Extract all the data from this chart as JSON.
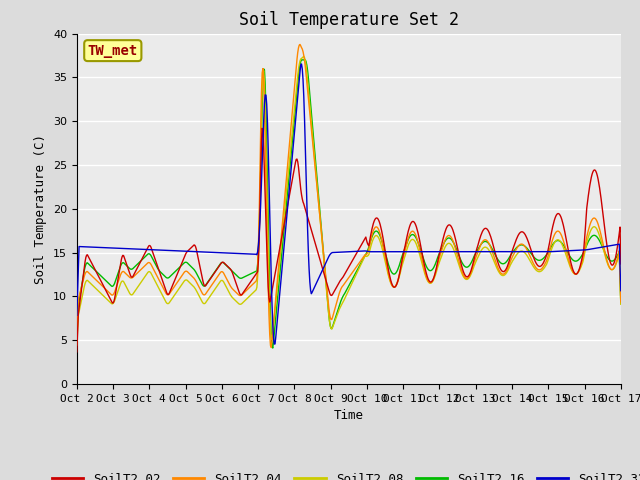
{
  "title": "Soil Temperature Set 2",
  "xlabel": "Time",
  "ylabel": "Soil Temperature (C)",
  "ylim": [
    0,
    40
  ],
  "background_color": "#dcdcdc",
  "plot_bg": "#ebebeb",
  "annotation_text": "TW_met",
  "annotation_color": "#990000",
  "annotation_bg": "#ffff99",
  "annotation_border": "#999900",
  "tick_labels": [
    "Oct 2",
    "Oct 3",
    "Oct 4",
    "Oct 5",
    "Oct 6",
    "Oct 7",
    "Oct 8",
    "Oct 9",
    "Oct 10",
    "Oct 11",
    "Oct 12",
    "Oct 13",
    "Oct 14",
    "Oct 15",
    "Oct 16",
    "Oct 17"
  ],
  "series_colors": {
    "SoilT2_02": "#cc0000",
    "SoilT2_04": "#ff8800",
    "SoilT2_08": "#cccc00",
    "SoilT2_16": "#00bb00",
    "SoilT2_32": "#0000cc"
  },
  "yticks": [
    0,
    5,
    10,
    15,
    20,
    25,
    30,
    35,
    40
  ],
  "grid_color": "#ffffff",
  "title_fontsize": 12,
  "axis_fontsize": 9,
  "tick_fontsize": 8,
  "legend_fontsize": 9
}
